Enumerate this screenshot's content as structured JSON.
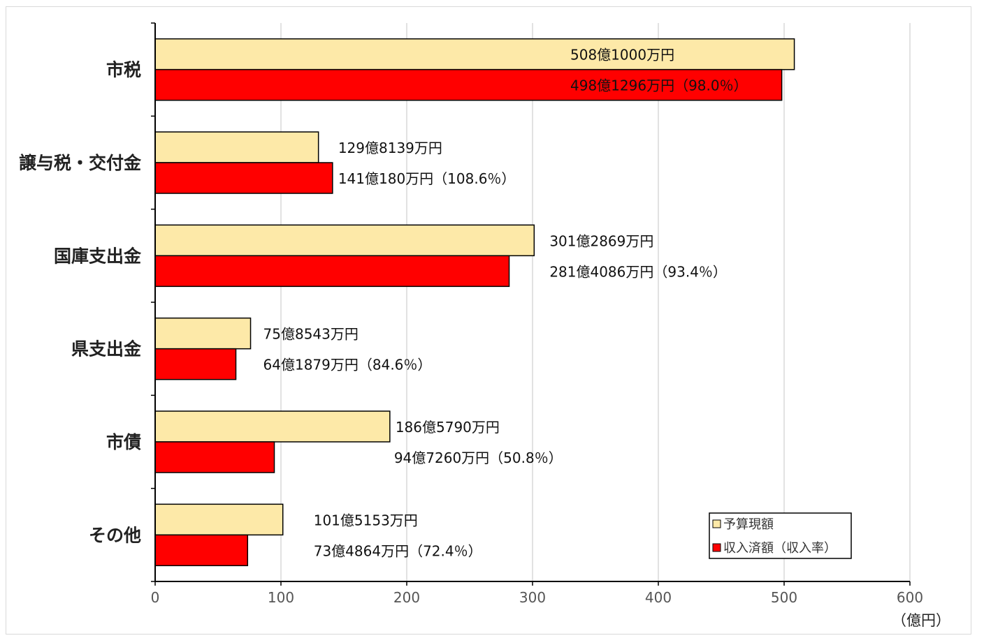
{
  "chart_data": {
    "type": "bar",
    "orientation": "horizontal",
    "title": "",
    "xlabel": "",
    "ylabel": "",
    "unit_label": "（億円）",
    "xlim": [
      0,
      600
    ],
    "xticks": [
      0,
      100,
      200,
      300,
      400,
      500,
      600
    ],
    "grid": true,
    "legend_position": "bottom-right",
    "categories": [
      "市税",
      "譲与税・交付金",
      "国庫支出金",
      "県支出金",
      "市債",
      "その他"
    ],
    "series": [
      {
        "name": "予算現額",
        "color": "#fde9a8",
        "values": [
          508.1,
          129.8139,
          301.2869,
          75.8543,
          186.579,
          101.5153
        ],
        "labels": [
          "508億1000万円",
          "129億8139万円",
          "301億2869万円",
          "75億8543万円",
          "186億5790万円",
          "101億5153万円"
        ]
      },
      {
        "name": "収入済額（収入率）",
        "color": "#ff0000",
        "values": [
          498.1296,
          141.018,
          281.4086,
          64.1879,
          94.726,
          73.4864
        ],
        "labels": [
          "498億1296万円（98.0％）",
          "141億180万円（108.6％）",
          "281億4086万円（93.4％）",
          "64億1879万円（84.6％）",
          "94億7260万円（50.8％）",
          "73億4864万円（72.4％）"
        ]
      }
    ]
  }
}
